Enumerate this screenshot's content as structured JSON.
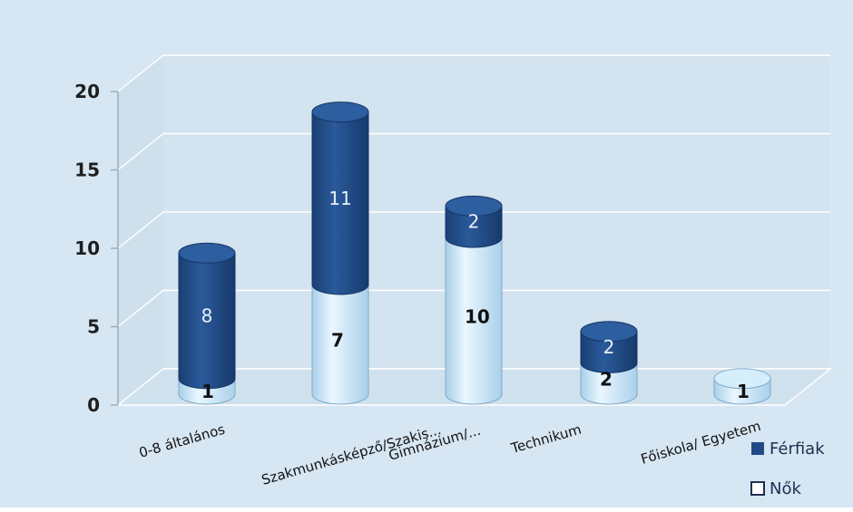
{
  "chart_data": {
    "type": "bar",
    "stacked": true,
    "style": "3d-cylinder",
    "categories": [
      "0-8 általános",
      "Szakmunkásképző/Szakis...",
      "Gimnázium/...",
      "Technikum",
      "Főiskola/ Egyetem"
    ],
    "series": [
      {
        "name": "Nők",
        "values": [
          1,
          7,
          10,
          2,
          1
        ],
        "labels": [
          "1",
          "7",
          "10",
          "2",
          "1"
        ],
        "color": "#c4e4f6"
      },
      {
        "name": "Férfiak",
        "values": [
          8,
          11,
          2,
          2,
          0
        ],
        "labels": [
          "8",
          "11",
          "2",
          "2",
          ""
        ],
        "color": "#1f4b86"
      }
    ],
    "yticks": [
      "0",
      "5",
      "10",
      "15",
      "20"
    ],
    "ylim": [
      0,
      20
    ],
    "grid": true,
    "legend": "bottom-right",
    "title": "",
    "xlabel": "",
    "ylabel": ""
  },
  "colors": {
    "background": "#d6e6f2",
    "wall": "#d3e3ef",
    "gridline": "#ffffff",
    "female": "#c4e4f6",
    "female_edge": "#a9cde6",
    "male": "#1f4b86",
    "male_top": "#2b5c9c"
  }
}
